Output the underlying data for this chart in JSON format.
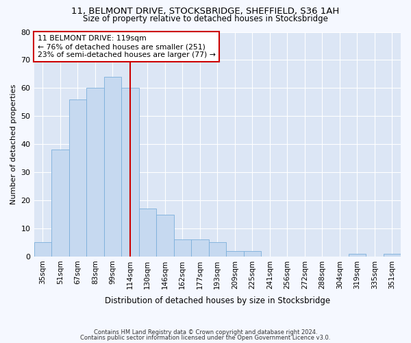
{
  "title_line1": "11, BELMONT DRIVE, STOCKSBRIDGE, SHEFFIELD, S36 1AH",
  "title_line2": "Size of property relative to detached houses in Stocksbridge",
  "xlabel": "Distribution of detached houses by size in Stocksbridge",
  "ylabel": "Number of detached properties",
  "categories": [
    "35sqm",
    "51sqm",
    "67sqm",
    "83sqm",
    "99sqm",
    "114sqm",
    "130sqm",
    "146sqm",
    "162sqm",
    "177sqm",
    "193sqm",
    "209sqm",
    "225sqm",
    "241sqm",
    "256sqm",
    "272sqm",
    "288sqm",
    "304sqm",
    "319sqm",
    "335sqm",
    "351sqm"
  ],
  "values": [
    5,
    38,
    56,
    60,
    64,
    60,
    17,
    15,
    6,
    6,
    5,
    2,
    2,
    0,
    0,
    0,
    0,
    0,
    1,
    0,
    1
  ],
  "bar_color": "#c6d9f0",
  "bar_edge_color": "#7aaedb",
  "vline_x": 5,
  "vline_color": "#cc0000",
  "annotation_text": "11 BELMONT DRIVE: 119sqm\n← 76% of detached houses are smaller (251)\n23% of semi-detached houses are larger (77) →",
  "annotation_box_color": "#ffffff",
  "annotation_box_edge": "#cc0000",
  "ylim": [
    0,
    80
  ],
  "yticks": [
    0,
    10,
    20,
    30,
    40,
    50,
    60,
    70,
    80
  ],
  "background_color": "#dce6f5",
  "fig_color": "#f5f8ff",
  "grid_color": "#ffffff",
  "footer_line1": "Contains HM Land Registry data © Crown copyright and database right 2024.",
  "footer_line2": "Contains public sector information licensed under the Open Government Licence v3.0."
}
